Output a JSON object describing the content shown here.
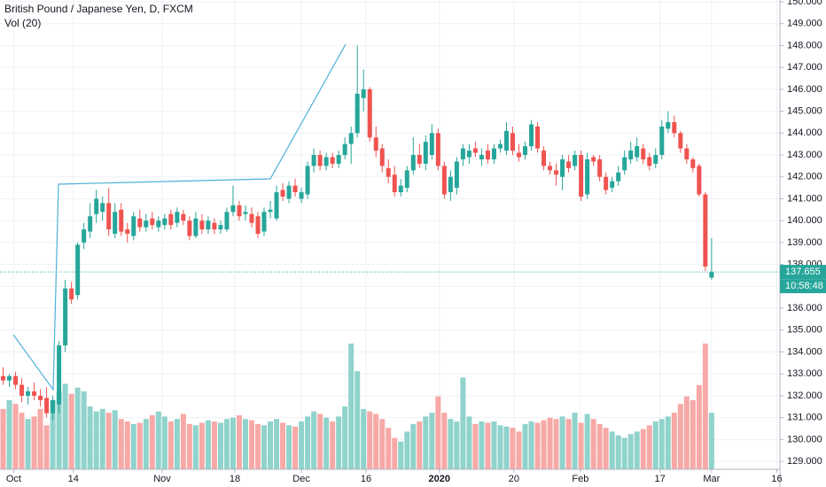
{
  "chart_data": {
    "type": "candlestick",
    "title": "British Pound / Japanese Yen, D, FXCM",
    "subtitle": "Vol (20)",
    "last_price_label": "137.655",
    "countdown": "10:58:48",
    "up_color": "#26a69a",
    "down_color": "#ef5350",
    "volume_up_color": "#8fd3cc",
    "volume_down_color": "#f7a9a7",
    "grid": true,
    "xlim": [
      -0.5,
      125
    ],
    "xticks": [
      {
        "value": 1.7,
        "label": "Oct"
      },
      {
        "value": 11.3,
        "label": "14"
      },
      {
        "value": 25.6,
        "label": "Nov"
      },
      {
        "value": 37.3,
        "label": "18"
      },
      {
        "value": 48,
        "label": "Dec"
      },
      {
        "value": 58.4,
        "label": "16"
      },
      {
        "value": 70.2,
        "label": "2020"
      },
      {
        "value": 82.2,
        "label": "20"
      },
      {
        "value": 92.9,
        "label": "Feb"
      },
      {
        "value": 105.7,
        "label": "17"
      },
      {
        "value": 114,
        "label": "Mar"
      },
      {
        "value": 124.5,
        "label": "16"
      }
    ],
    "ylim": [
      128.64,
      150.08
    ],
    "yticks": [
      {
        "value": 129,
        "label": "129.000"
      },
      {
        "value": 130,
        "label": "130.000"
      },
      {
        "value": 131,
        "label": "131.000"
      },
      {
        "value": 132,
        "label": "132.000"
      },
      {
        "value": 133,
        "label": "133.000"
      },
      {
        "value": 134,
        "label": "134.000"
      },
      {
        "value": 135,
        "label": "135.000"
      },
      {
        "value": 136,
        "label": "136.000"
      },
      {
        "value": 137,
        "label": "137.000"
      },
      {
        "value": 138,
        "label": "138.000"
      },
      {
        "value": 139,
        "label": "139.000"
      },
      {
        "value": 140,
        "label": "140.000"
      },
      {
        "value": 141,
        "label": "141.000"
      },
      {
        "value": 142,
        "label": "142.000"
      },
      {
        "value": 143,
        "label": "143.000"
      },
      {
        "value": 144,
        "label": "144.000"
      },
      {
        "value": 145,
        "label": "145.000"
      },
      {
        "value": 146,
        "label": "146.000"
      },
      {
        "value": 147,
        "label": "147.000"
      },
      {
        "value": 148,
        "label": "148.000"
      },
      {
        "value": 149,
        "label": "149.000"
      },
      {
        "value": 150,
        "label": "150.000"
      }
    ],
    "open": [
      132.9,
      132.7,
      132.9,
      132.5,
      132.0,
      132.2,
      132.0,
      131.9,
      131.2,
      131.6,
      134.3,
      136.9,
      136.6,
      139.0,
      139.5,
      140.3,
      140.4,
      140.8,
      139.4,
      140.5,
      139.6,
      139.3,
      140.1,
      139.7,
      140.1,
      139.7,
      139.8,
      140.3,
      139.9,
      140.3,
      140.0,
      139.3,
      140.0,
      139.6,
      139.9,
      139.6,
      139.6,
      140.4,
      140.7,
      140.3,
      140.3,
      140.2,
      139.5,
      140.4,
      140.1,
      141.4,
      141.0,
      141.6,
      141.0,
      141.2,
      142.5,
      143.0,
      142.5,
      142.9,
      142.6,
      143.0,
      143.5,
      144.0,
      145.6,
      146.0,
      143.8,
      143.3,
      142.4,
      142.1,
      141.3,
      141.5,
      142.3,
      143.0,
      142.6,
      143.0,
      144.0,
      142.5,
      141.3,
      141.5,
      142.8,
      142.9,
      143.3,
      142.8,
      143.2,
      142.8,
      143.3,
      143.2,
      144.0,
      143.1,
      143.0,
      143.4,
      144.3,
      143.2,
      142.5,
      142.3,
      142.0,
      142.7,
      142.5,
      143.0,
      141.2,
      142.9,
      142.8,
      142.0,
      141.5,
      141.8,
      142.3,
      142.8,
      142.9,
      143.3,
      142.9,
      142.6,
      143.0,
      144.2,
      144.5,
      144.0,
      143.3,
      142.8,
      142.5,
      141.2,
      137.4
    ],
    "high": [
      133.3,
      133.0,
      133.1,
      132.8,
      132.4,
      132.6,
      132.3,
      132.4,
      132.0,
      134.5,
      137.3,
      137.2,
      139.0,
      139.9,
      140.8,
      141.4,
      141.1,
      141.5,
      140.8,
      140.8,
      139.9,
      140.4,
      140.5,
      140.3,
      140.4,
      140.2,
      140.3,
      140.5,
      140.6,
      140.5,
      140.2,
      140.4,
      140.3,
      140.2,
      140.1,
      140.0,
      140.6,
      141.6,
      140.9,
      140.7,
      140.6,
      140.4,
      140.6,
      140.9,
      141.6,
      141.7,
      141.8,
      141.9,
      141.5,
      142.7,
      143.3,
      143.2,
      143.1,
      143.1,
      143.2,
      143.8,
      144.3,
      148.0,
      146.9,
      146.1,
      144.3,
      143.5,
      142.8,
      142.5,
      141.9,
      142.5,
      143.8,
      143.5,
      143.9,
      144.4,
      144.2,
      142.7,
      142.3,
      142.9,
      143.5,
      143.5,
      143.6,
      143.3,
      143.5,
      143.5,
      143.7,
      144.5,
      144.3,
      143.5,
      143.6,
      144.6,
      144.5,
      143.4,
      142.7,
      142.6,
      143.0,
      143.0,
      143.2,
      143.2,
      143.1,
      143.0,
      143.0,
      142.2,
      142.0,
      142.5,
      143.2,
      143.6,
      143.8,
      143.5,
      143.1,
      143.3,
      144.6,
      145.0,
      144.8,
      144.1,
      143.5,
      142.9,
      142.6,
      141.3,
      139.2
    ],
    "low": [
      132.5,
      132.4,
      132.3,
      131.7,
      131.6,
      131.8,
      131.5,
      131.0,
      130.9,
      131.2,
      134.0,
      136.2,
      136.4,
      138.7,
      139.2,
      139.9,
      140.0,
      139.3,
      139.2,
      139.3,
      139.0,
      139.1,
      139.5,
      139.5,
      139.6,
      139.5,
      139.6,
      139.6,
      139.7,
      139.8,
      139.1,
      139.2,
      139.4,
      139.4,
      139.4,
      139.4,
      139.5,
      140.2,
      140.0,
      140.0,
      139.7,
      139.2,
      139.3,
      140.1,
      140.0,
      140.9,
      140.8,
      141.1,
      140.8,
      141.0,
      142.2,
      142.3,
      142.3,
      142.4,
      142.4,
      142.8,
      142.6,
      143.8,
      145.0,
      143.6,
      142.9,
      142.2,
      141.7,
      141.1,
      141.1,
      141.3,
      142.1,
      142.4,
      142.3,
      142.8,
      142.3,
      141.0,
      140.9,
      141.2,
      142.5,
      142.6,
      142.9,
      142.5,
      142.6,
      142.6,
      143.1,
      143.0,
      143.0,
      142.7,
      142.8,
      143.2,
      143.1,
      142.3,
      142.1,
      141.6,
      141.4,
      142.2,
      142.3,
      140.9,
      141.0,
      142.5,
      141.8,
      141.2,
      141.3,
      141.6,
      142.1,
      142.6,
      142.7,
      142.6,
      142.3,
      142.4,
      142.8,
      144.0,
      143.8,
      143.1,
      142.6,
      142.2,
      141.1,
      137.7,
      137.3
    ],
    "close": [
      132.7,
      132.9,
      132.5,
      132.0,
      132.2,
      132.0,
      131.8,
      131.2,
      131.8,
      134.3,
      136.9,
      136.4,
      138.9,
      139.6,
      140.2,
      141.0,
      140.8,
      139.6,
      140.4,
      139.5,
      139.4,
      140.2,
      139.7,
      140.0,
      139.8,
      140.0,
      140.1,
      139.8,
      140.4,
      140.0,
      139.3,
      140.1,
      139.6,
      140.0,
      139.6,
      139.8,
      140.4,
      140.7,
      140.2,
      140.4,
      139.9,
      139.4,
      140.4,
      140.5,
      141.3,
      141.1,
      141.6,
      141.3,
      141.3,
      142.5,
      143.0,
      142.5,
      142.9,
      142.6,
      143.0,
      143.5,
      144.0,
      145.8,
      146.0,
      143.8,
      143.2,
      142.5,
      142.0,
      141.3,
      141.6,
      142.3,
      143.0,
      142.6,
      143.6,
      144.0,
      142.5,
      141.2,
      142.0,
      142.7,
      143.3,
      143.2,
      143.1,
      143.0,
      142.8,
      143.3,
      143.5,
      144.1,
      143.2,
      142.9,
      143.4,
      144.4,
      143.3,
      142.5,
      142.3,
      142.1,
      142.8,
      142.4,
      143.0,
      141.1,
      142.8,
      142.7,
      142.0,
      141.4,
      141.8,
      142.2,
      142.9,
      143.2,
      143.4,
      142.8,
      142.5,
      143.0,
      144.3,
      144.5,
      144.0,
      143.3,
      142.8,
      142.4,
      141.2,
      137.9,
      137.655
    ],
    "volume": [
      48,
      55,
      52,
      45,
      40,
      42,
      48,
      35,
      55,
      62,
      68,
      60,
      65,
      62,
      50,
      46,
      48,
      45,
      47,
      40,
      38,
      36,
      37,
      40,
      43,
      46,
      42,
      38,
      40,
      44,
      36,
      35,
      37,
      39,
      38,
      37,
      40,
      41,
      43,
      40,
      39,
      36,
      35,
      38,
      40,
      37,
      35,
      34,
      38,
      42,
      46,
      44,
      41,
      38,
      42,
      50,
      100,
      78,
      48,
      46,
      44,
      40,
      33,
      25,
      22,
      30,
      36,
      38,
      42,
      45,
      58,
      45,
      40,
      38,
      73,
      42,
      36,
      38,
      37,
      38,
      35,
      34,
      33,
      30,
      36,
      38,
      37,
      39,
      41,
      40,
      42,
      40,
      45,
      37,
      44,
      40,
      36,
      33,
      30,
      27,
      25,
      28,
      30,
      32,
      35,
      38,
      40,
      42,
      45,
      52,
      58,
      55,
      67,
      100,
      45
    ]
  }
}
